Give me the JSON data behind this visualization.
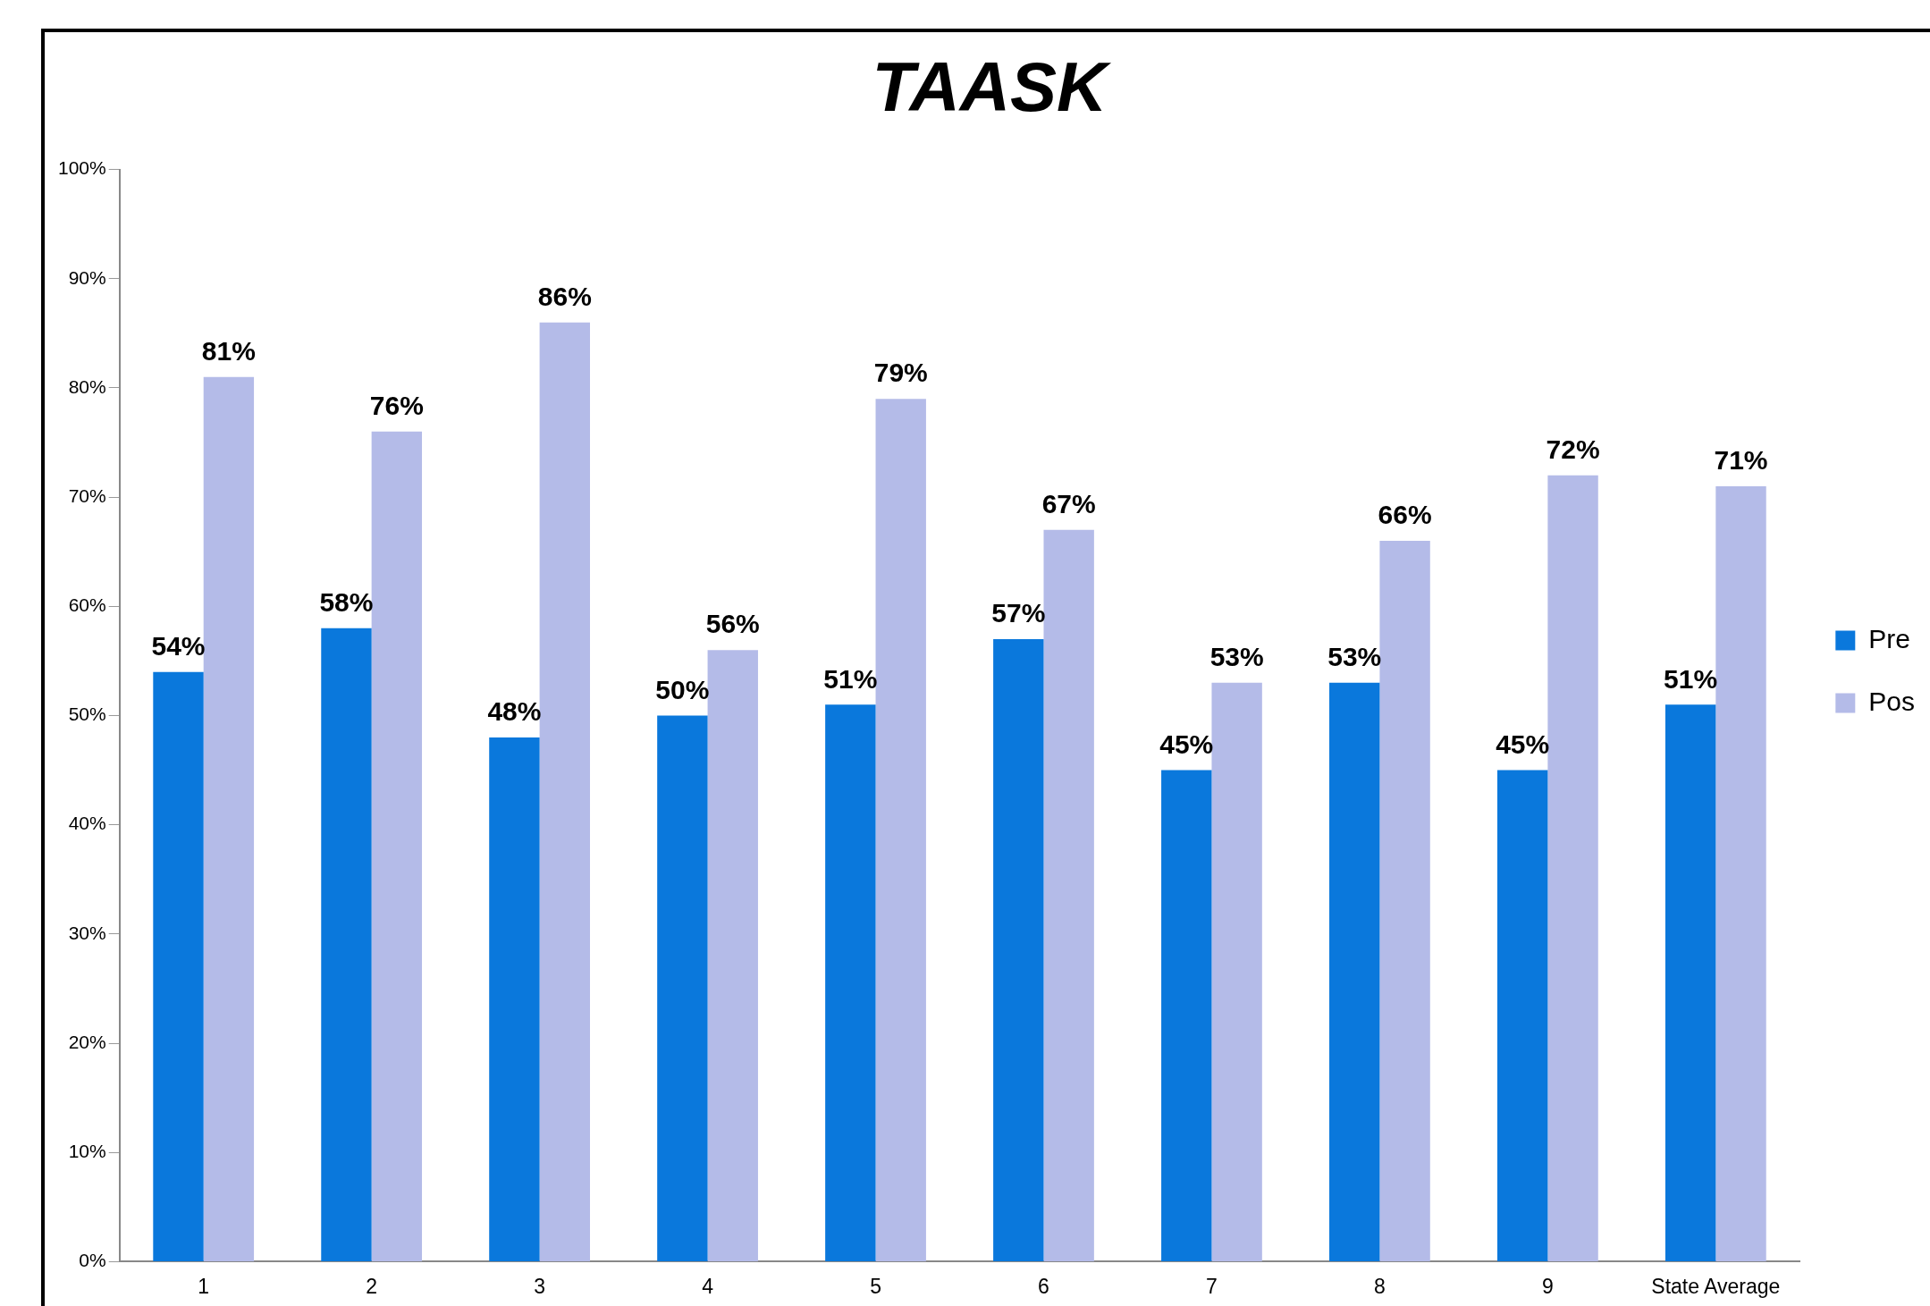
{
  "chart_data": {
    "type": "bar",
    "title": "TAASK",
    "categories": [
      "1",
      "2",
      "3",
      "4",
      "5",
      "6",
      "7",
      "8",
      "9",
      "State Average"
    ],
    "series": [
      {
        "name": "Pre",
        "color": "#0a78dc",
        "values": [
          54,
          58,
          48,
          50,
          51,
          57,
          45,
          53,
          45,
          51
        ],
        "value_labels": [
          "54%",
          "58%",
          "48%",
          "50%",
          "51%",
          "57%",
          "45%",
          "53%",
          "45%",
          "51%"
        ]
      },
      {
        "name": "Pos",
        "color": "#b4bbe8",
        "values": [
          81,
          76,
          86,
          56,
          79,
          67,
          53,
          66,
          72,
          71
        ],
        "value_labels": [
          "81%",
          "76%",
          "86%",
          "56%",
          "79%",
          "67%",
          "53%",
          "66%",
          "72%",
          "71%"
        ]
      }
    ],
    "ylim": [
      0,
      100
    ],
    "yticks": [
      {
        "value": 0,
        "label": "0%"
      },
      {
        "value": 10,
        "label": "10%"
      },
      {
        "value": 20,
        "label": "20%"
      },
      {
        "value": 30,
        "label": "30%"
      },
      {
        "value": 40,
        "label": "40%"
      },
      {
        "value": 50,
        "label": "50%"
      },
      {
        "value": 60,
        "label": "60%"
      },
      {
        "value": 70,
        "label": "70%"
      },
      {
        "value": 80,
        "label": "80%"
      },
      {
        "value": 90,
        "label": "90%"
      },
      {
        "value": 100,
        "label": "100%"
      }
    ],
    "grid": false,
    "legend": "right"
  }
}
